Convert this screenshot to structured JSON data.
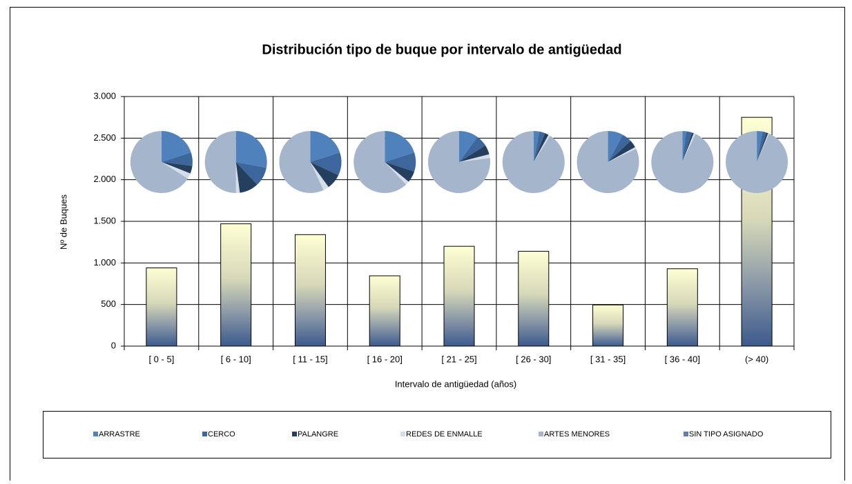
{
  "chart_data": [
    {
      "type": "bar",
      "title": "Distribución tipo de buque por intervalo de antigüedad",
      "x_label": "Intervalo de antigüedad (años)",
      "y_label": "Nº de Buques",
      "categories": [
        "[ 0 - 5]",
        "[ 6 - 10]",
        "[ 11 - 15]",
        "[ 16 - 20]",
        "[ 21 - 25]",
        "[ 26 - 30]",
        "[ 31 - 35]",
        "[ 36 - 40]",
        "(>   40)"
      ],
      "values": [
        940,
        1470,
        1340,
        845,
        1200,
        1140,
        495,
        930,
        2750
      ],
      "ylim": [
        0,
        3000
      ],
      "yticks": [
        0,
        500,
        {
          "value": 1000,
          "label": "1.000"
        },
        {
          "value": 1500,
          "label": "1.500"
        },
        {
          "value": 2000,
          "label": "2.000"
        },
        {
          "value": 2500,
          "label": "2.500"
        },
        {
          "value": 3000,
          "label": "3.000"
        }
      ],
      "grid": true
    },
    {
      "type": "pie",
      "series": [
        {
          "name": "ARRASTRE",
          "color": "#4f81bd",
          "values": [
            20,
            28,
            20,
            20,
            10,
            3,
            8,
            2,
            3
          ]
        },
        {
          "name": "CERCO",
          "color": "#3d679c",
          "values": [
            7,
            10,
            12,
            10,
            6,
            3,
            5,
            3,
            2
          ]
        },
        {
          "name": "PALANGRE",
          "color": "#25405f",
          "values": [
            4,
            10,
            8,
            6,
            5,
            2,
            4,
            1,
            1
          ]
        },
        {
          "name": "REDES DE ENMALLE",
          "color": "#d5dde8",
          "values": [
            3,
            2,
            3,
            2,
            2,
            1,
            1,
            1,
            0.5
          ]
        },
        {
          "name": "ARTES MENORES",
          "color": "#a5b5cb",
          "values": [
            66,
            50,
            57,
            62,
            77,
            91,
            82,
            93,
            93.5
          ]
        },
        {
          "name": "SIN TIPO ASIGNADO",
          "color": "#5f80ab",
          "values": [
            0,
            0,
            0,
            0,
            0,
            0,
            0,
            0,
            0
          ]
        }
      ]
    }
  ]
}
